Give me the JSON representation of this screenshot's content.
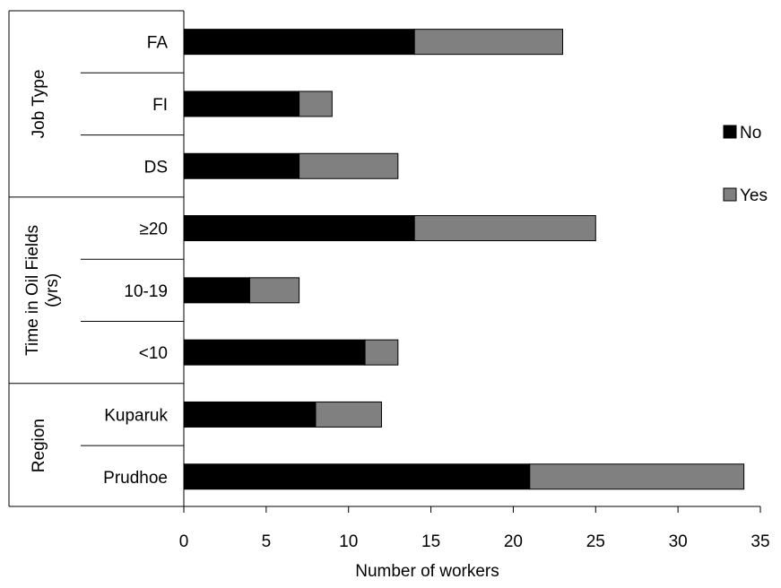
{
  "chart_data": {
    "type": "bar",
    "orientation": "horizontal",
    "stacked": true,
    "title": "",
    "xlabel": "Number of workers",
    "ylabel": "",
    "xlim": [
      0,
      35
    ],
    "x_ticks": [
      "0",
      "5",
      "10",
      "15",
      "20",
      "25",
      "30",
      "35"
    ],
    "grid": false,
    "legend_position": "right",
    "groups": [
      {
        "label": "Job Type",
        "label_lines": [
          "Job Type"
        ],
        "categories": [
          "FA",
          "FI",
          "DS"
        ]
      },
      {
        "label": "Time in Oil Fields (yrs)",
        "label_lines": [
          "Time in Oil Fields",
          "(yrs)"
        ],
        "categories": [
          "≥20",
          "10-19",
          "<10"
        ]
      },
      {
        "label": "Region",
        "label_lines": [
          "Region"
        ],
        "categories": [
          "Kuparuk",
          "Prudhoe"
        ]
      }
    ],
    "categories": [
      "FA",
      "FI",
      "DS",
      "≥20",
      "10-19",
      "<10",
      "Kuparuk",
      "Prudhoe"
    ],
    "series": [
      {
        "name": "No",
        "color": "#000000",
        "values": [
          14,
          7,
          7,
          14,
          4,
          11,
          8,
          21
        ]
      },
      {
        "name": "Yes",
        "color": "#808080",
        "values": [
          9,
          2,
          6,
          11,
          3,
          2,
          4,
          13
        ]
      }
    ]
  }
}
